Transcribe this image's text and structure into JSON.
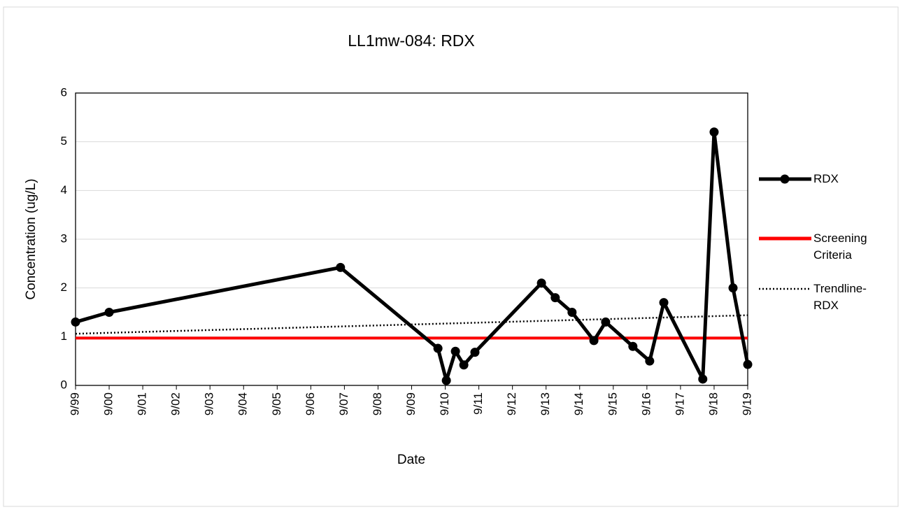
{
  "chart_data": {
    "type": "line",
    "title": "LL1mw-084: RDX",
    "x_label": "Date",
    "y_label": "Concentration (ug/L)",
    "xlim": [
      1999.667,
      2019.667
    ],
    "xticks": [
      {
        "value": 1999.667,
        "label": "9/99"
      },
      {
        "value": 2000.667,
        "label": "9/00"
      },
      {
        "value": 2001.667,
        "label": "9/01"
      },
      {
        "value": 2002.667,
        "label": "9/02"
      },
      {
        "value": 2003.667,
        "label": "9/03"
      },
      {
        "value": 2004.667,
        "label": "9/04"
      },
      {
        "value": 2005.667,
        "label": "9/05"
      },
      {
        "value": 2006.667,
        "label": "9/06"
      },
      {
        "value": 2007.667,
        "label": "9/07"
      },
      {
        "value": 2008.667,
        "label": "9/08"
      },
      {
        "value": 2009.667,
        "label": "9/09"
      },
      {
        "value": 2010.667,
        "label": "9/10"
      },
      {
        "value": 2011.667,
        "label": "9/11"
      },
      {
        "value": 2012.667,
        "label": "9/12"
      },
      {
        "value": 2013.667,
        "label": "9/13"
      },
      {
        "value": 2014.667,
        "label": "9/14"
      },
      {
        "value": 2015.667,
        "label": "9/15"
      },
      {
        "value": 2016.667,
        "label": "9/16"
      },
      {
        "value": 2017.667,
        "label": "9/17"
      },
      {
        "value": 2018.667,
        "label": "9/18"
      },
      {
        "value": 2019.667,
        "label": "9/19"
      }
    ],
    "ylim": [
      0,
      6
    ],
    "yticks": [
      0,
      1,
      2,
      3,
      4,
      5,
      6
    ],
    "grid": true,
    "legend": "right",
    "series": [
      {
        "name": "RDX",
        "color": "#000000",
        "style": "solid",
        "marker": "circle",
        "x": [
          1999.667,
          2000.667,
          2007.55,
          2010.45,
          2010.7,
          2010.97,
          2011.22,
          2011.55,
          2013.53,
          2013.94,
          2014.44,
          2015.09,
          2015.44,
          2016.25,
          2016.75,
          2017.17,
          2018.33,
          2018.667,
          2019.23,
          2019.667
        ],
        "values": [
          1.3,
          1.5,
          2.42,
          0.76,
          0.1,
          0.7,
          0.42,
          0.68,
          2.1,
          1.8,
          1.5,
          0.92,
          1.3,
          0.8,
          0.5,
          1.7,
          0.13,
          5.2,
          2.0,
          0.43
        ]
      },
      {
        "name": "Screening Criteria",
        "color": "#ff0000",
        "style": "solid",
        "x": [
          1999.667,
          2019.667
        ],
        "values": [
          0.97,
          0.97
        ]
      },
      {
        "name": "Trendline-RDX",
        "color": "#000000",
        "style": "dotted",
        "x": [
          1999.667,
          2019.667
        ],
        "values": [
          1.06,
          1.44
        ]
      }
    ]
  }
}
